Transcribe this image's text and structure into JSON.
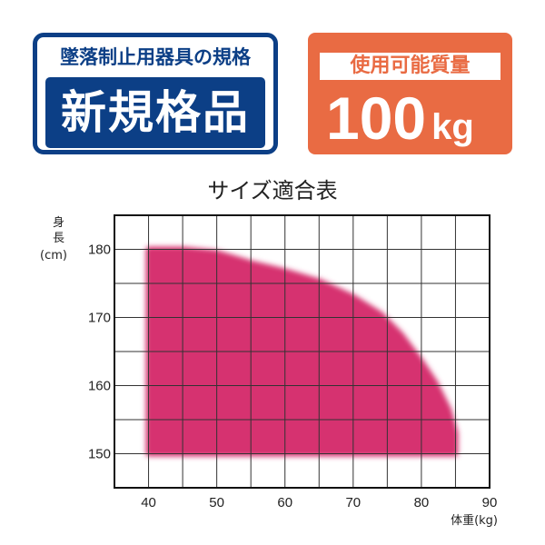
{
  "badges": {
    "standard": {
      "subtitle": "墜落制止用器具の規格",
      "label": "新規格品",
      "color": "#0c3f86"
    },
    "capacity": {
      "subtitle": "使用可能質量",
      "value": "100",
      "unit": "kg",
      "color": "#e96b43"
    }
  },
  "chart_data": {
    "type": "area",
    "title": "サイズ適合表",
    "xlabel": "体重(kg)",
    "ylabel_line1": "身",
    "ylabel_line2": "長",
    "ylabel_unit": "(cm)",
    "xlim": [
      35,
      90
    ],
    "ylim": [
      145,
      185
    ],
    "xticks": [
      40,
      50,
      60,
      70,
      80,
      90
    ],
    "yticks": [
      150,
      160,
      170,
      180
    ],
    "grid": true,
    "grid_step": {
      "x": 5,
      "y": 5
    },
    "fill_color": "#d63370",
    "region": [
      [
        40,
        150
      ],
      [
        40,
        180
      ],
      [
        45,
        180
      ],
      [
        50,
        179.5
      ],
      [
        55,
        178
      ],
      [
        60,
        176.8
      ],
      [
        65,
        175.3
      ],
      [
        70,
        173
      ],
      [
        74,
        170.5
      ],
      [
        77,
        167.5
      ],
      [
        80,
        163.5
      ],
      [
        82,
        160.5
      ],
      [
        84,
        156.5
      ],
      [
        85,
        153
      ],
      [
        85,
        150
      ]
    ]
  }
}
